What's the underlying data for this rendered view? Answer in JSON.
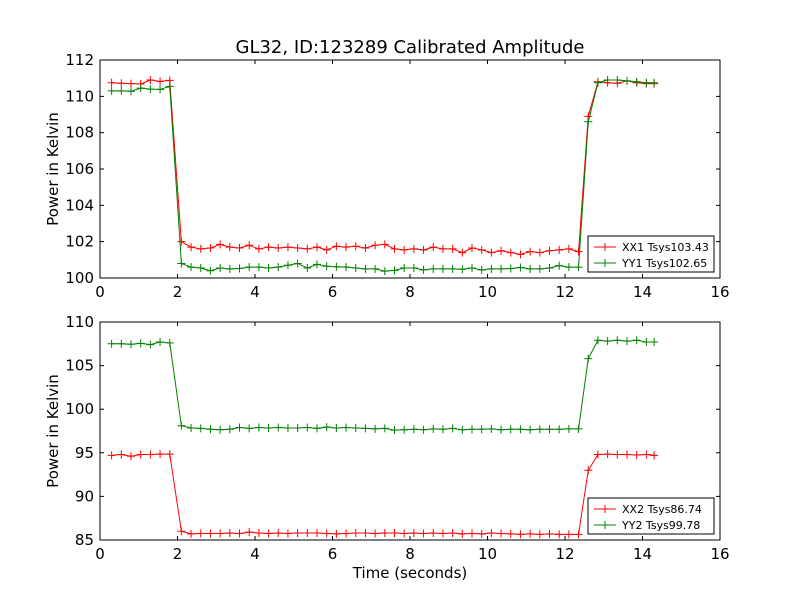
{
  "title": "GL32, ID:123289 Calibrated Amplitude",
  "colors": {
    "red": "#ff0000",
    "green": "#008000",
    "axes": "#000000",
    "background": "#ffffff"
  },
  "chart_data": [
    {
      "type": "line",
      "title": "GL32, ID:123289 Calibrated Amplitude",
      "xlabel": "",
      "ylabel": "Power in Kelvin",
      "xlim": [
        0,
        16
      ],
      "ylim": [
        100,
        112
      ],
      "xticks": [
        "0",
        "2",
        "4",
        "6",
        "8",
        "10",
        "12",
        "14",
        "16"
      ],
      "yticks": [
        "100",
        "102",
        "104",
        "106",
        "108",
        "110",
        "112"
      ],
      "grid": false,
      "legend_position": "lower-right",
      "x": [
        0.3,
        0.55,
        0.8,
        1.05,
        1.3,
        1.55,
        1.8,
        2.1,
        2.35,
        2.6,
        2.85,
        3.1,
        3.35,
        3.6,
        3.85,
        4.1,
        4.35,
        4.6,
        4.85,
        5.1,
        5.35,
        5.6,
        5.85,
        6.1,
        6.35,
        6.6,
        6.85,
        7.1,
        7.35,
        7.6,
        7.85,
        8.1,
        8.35,
        8.6,
        8.85,
        9.1,
        9.35,
        9.6,
        9.85,
        10.1,
        10.35,
        10.6,
        10.85,
        11.1,
        11.35,
        11.6,
        11.85,
        12.1,
        12.35,
        12.6,
        12.85,
        13.1,
        13.35,
        13.6,
        13.85,
        14.1,
        14.3
      ],
      "series": [
        {
          "name": "XX1 Tsys103.43",
          "color": "#ff0000",
          "values": [
            110.75,
            110.72,
            110.7,
            110.68,
            110.9,
            110.82,
            110.88,
            102.0,
            101.7,
            101.6,
            101.65,
            101.85,
            101.7,
            101.65,
            101.8,
            101.6,
            101.7,
            101.65,
            101.7,
            101.65,
            101.6,
            101.7,
            101.55,
            101.75,
            101.7,
            101.75,
            101.65,
            101.8,
            101.85,
            101.6,
            101.55,
            101.6,
            101.55,
            101.7,
            101.6,
            101.6,
            101.4,
            101.65,
            101.55,
            101.4,
            101.5,
            101.4,
            101.3,
            101.45,
            101.4,
            101.5,
            101.55,
            101.6,
            101.45,
            108.9,
            110.8,
            110.75,
            110.72,
            110.85,
            110.75,
            110.7,
            110.7
          ]
        },
        {
          "name": "YY1 Tsys102.65",
          "color": "#008000",
          "values": [
            110.3,
            110.3,
            110.28,
            110.45,
            110.4,
            110.38,
            110.55,
            100.8,
            100.6,
            100.55,
            100.4,
            100.55,
            100.5,
            100.52,
            100.6,
            100.6,
            100.55,
            100.6,
            100.7,
            100.8,
            100.55,
            100.75,
            100.65,
            100.62,
            100.6,
            100.55,
            100.5,
            100.5,
            100.38,
            100.42,
            100.55,
            100.55,
            100.45,
            100.5,
            100.5,
            100.5,
            100.48,
            100.55,
            100.45,
            100.5,
            100.5,
            100.52,
            100.58,
            100.5,
            100.5,
            100.55,
            100.68,
            100.6,
            100.6,
            108.6,
            110.75,
            110.9,
            110.9,
            110.85,
            110.8,
            110.75,
            110.75
          ]
        }
      ]
    },
    {
      "type": "line",
      "title": "",
      "xlabel": "Time (seconds)",
      "ylabel": "Power in Kelvin",
      "xlim": [
        0,
        16
      ],
      "ylim": [
        85,
        110
      ],
      "xticks": [
        "0",
        "2",
        "4",
        "6",
        "8",
        "10",
        "12",
        "14",
        "16"
      ],
      "yticks": [
        "85",
        "90",
        "95",
        "100",
        "105",
        "110"
      ],
      "grid": false,
      "legend_position": "lower-right",
      "x": [
        0.3,
        0.55,
        0.8,
        1.05,
        1.3,
        1.55,
        1.8,
        2.1,
        2.35,
        2.6,
        2.85,
        3.1,
        3.35,
        3.6,
        3.85,
        4.1,
        4.35,
        4.6,
        4.85,
        5.1,
        5.35,
        5.6,
        5.85,
        6.1,
        6.35,
        6.6,
        6.85,
        7.1,
        7.35,
        7.6,
        7.85,
        8.1,
        8.35,
        8.6,
        8.85,
        9.1,
        9.35,
        9.6,
        9.85,
        10.1,
        10.35,
        10.6,
        10.85,
        11.1,
        11.35,
        11.6,
        11.85,
        12.1,
        12.35,
        12.6,
        12.85,
        13.1,
        13.35,
        13.6,
        13.85,
        14.1,
        14.3
      ],
      "series": [
        {
          "name": "XX2 Tsys86.74",
          "color": "#ff0000",
          "values": [
            94.7,
            94.8,
            94.6,
            94.8,
            94.8,
            94.85,
            94.85,
            86.0,
            85.7,
            85.75,
            85.75,
            85.75,
            85.8,
            85.75,
            85.9,
            85.8,
            85.75,
            85.8,
            85.75,
            85.8,
            85.8,
            85.8,
            85.75,
            85.7,
            85.75,
            85.8,
            85.8,
            85.75,
            85.8,
            85.8,
            85.75,
            85.8,
            85.75,
            85.8,
            85.75,
            85.8,
            85.7,
            85.75,
            85.7,
            85.8,
            85.75,
            85.7,
            85.65,
            85.7,
            85.65,
            85.7,
            85.65,
            85.65,
            85.65,
            93.0,
            94.8,
            94.85,
            94.8,
            94.8,
            94.75,
            94.8,
            94.7
          ]
        },
        {
          "name": "YY2 Tsys99.78",
          "color": "#008000",
          "values": [
            107.5,
            107.5,
            107.45,
            107.55,
            107.4,
            107.7,
            107.6,
            98.1,
            97.85,
            97.8,
            97.7,
            97.65,
            97.7,
            97.9,
            97.8,
            97.9,
            97.85,
            97.9,
            97.85,
            97.85,
            97.9,
            97.8,
            97.95,
            97.85,
            97.9,
            97.85,
            97.8,
            97.75,
            97.8,
            97.6,
            97.65,
            97.7,
            97.65,
            97.75,
            97.7,
            97.8,
            97.65,
            97.7,
            97.7,
            97.75,
            97.65,
            97.7,
            97.7,
            97.65,
            97.7,
            97.7,
            97.7,
            97.75,
            97.75,
            105.8,
            107.9,
            107.8,
            107.9,
            107.8,
            107.9,
            107.7,
            107.7
          ]
        }
      ]
    }
  ]
}
